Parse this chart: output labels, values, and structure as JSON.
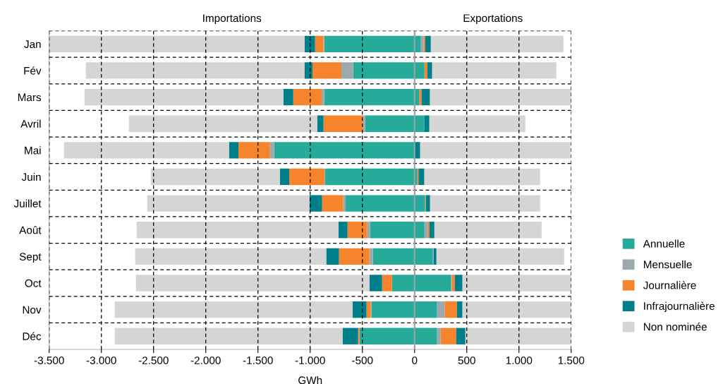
{
  "chart_data": {
    "type": "bar",
    "orientation": "horizontal",
    "stacked": true,
    "categories": [
      "Jan",
      "Fév",
      "Mars",
      "Avril",
      "Mai",
      "Juin",
      "Juillet",
      "Août",
      "Sept",
      "Oct",
      "Nov",
      "Déc"
    ],
    "xlabel": "GWh",
    "annotations": [
      "Importations",
      "Exportations"
    ],
    "series": [
      {
        "name": "Annuelle",
        "color": "#26ab9a",
        "values": [
          -865,
          -588,
          -865,
          -473,
          -1345,
          -858,
          -660,
          -426,
          -399,
          -216,
          -412,
          -527
        ]
      },
      {
        "name": "Mensuelle",
        "color": "#9ba8ae",
        "values": [
          -7,
          -113,
          -25,
          -23,
          -40,
          -5,
          -23,
          -27,
          -34,
          0,
          -7,
          0
        ]
      },
      {
        "name": "Journalière",
        "color": "#f5842c",
        "values": [
          -81,
          -277,
          -272,
          -376,
          -302,
          -338,
          -203,
          -189,
          -291,
          -95,
          -41,
          -14
        ]
      },
      {
        "name": "Infrajournalière",
        "color": "#007f8a",
        "values": [
          -101,
          -77,
          -95,
          -61,
          -90,
          -90,
          -122,
          -88,
          -122,
          -122,
          -135,
          -149
        ]
      },
      {
        "name": "Non nominée",
        "color": "#d5d6d4",
        "values": [
          -2446,
          -2094,
          -1905,
          -1803,
          -1581,
          -1236,
          -1553,
          -1932,
          -1830,
          -2236,
          -2277,
          -2182
        ]
      },
      {
        "color": "#26ab9a",
        "values": [
          61,
          95,
          47,
          95,
          null,
          27,
          101,
          95,
          176,
          351,
          216,
          216
        ]
      },
      {
        "color": "#9ba8ae",
        "values": [
          27,
          0,
          0,
          0,
          0,
          0,
          0,
          34,
          7,
          5,
          72,
          34
        ]
      },
      {
        "color": "#f5842c",
        "values": [
          14,
          27,
          20,
          0,
          0,
          11,
          7,
          14,
          0,
          29,
          117,
          149
        ]
      },
      {
        "color": "#007f8a",
        "values": [
          54,
          47,
          81,
          47,
          54,
          56,
          41,
          47,
          27,
          74,
          54,
          88
        ]
      },
      {
        "color": "#d5d6d4",
        "values": [
          1270,
          1189,
          1352,
          919,
          1439,
          1108,
          1054,
          1027,
          1223,
          1041,
          1041,
          1013
        ]
      }
    ],
    "xlim": [
      -3500,
      1500
    ],
    "xticks": [
      {
        "value": -3500,
        "label": "-3.500"
      },
      {
        "value": -3000,
        "label": "-3.000"
      },
      {
        "value": -2500,
        "label": "-2.500"
      },
      {
        "value": -2000,
        "label": "-2.000"
      },
      {
        "value": -1500,
        "label": "-1.500"
      },
      {
        "value": -1000,
        "label": "-1.000"
      },
      {
        "value": -500,
        "label": "-500"
      },
      0,
      500,
      {
        "value": 1000,
        "label": "1.000"
      },
      {
        "value": 1500,
        "label": "1.500"
      }
    ],
    "ref_lines": [
      {
        "axis": "x",
        "value": 0,
        "color": "#a0a4a8",
        "line_style": "solid"
      }
    ],
    "grid": true,
    "legend": "right"
  }
}
